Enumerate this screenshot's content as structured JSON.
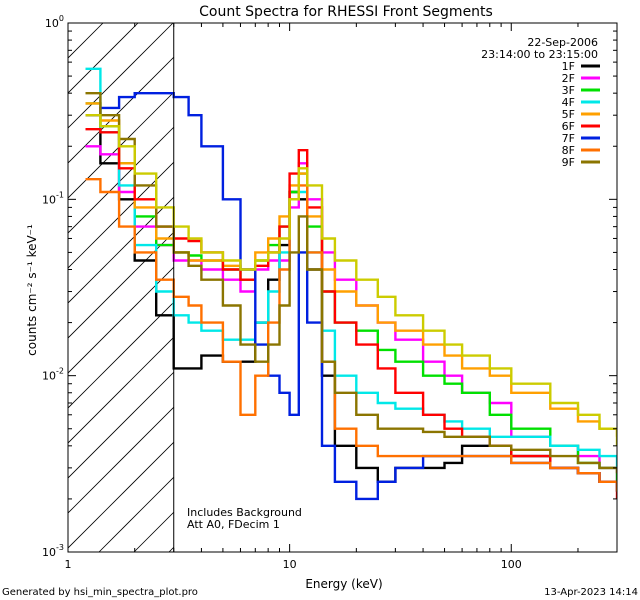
{
  "chart_data": {
    "type": "line",
    "title": "Count Spectra for RHESSI Front Segments",
    "xlabel": "Energy (keV)",
    "ylabel": "counts cm⁻² s⁻¹ keV⁻¹",
    "x_scale": "log",
    "y_scale": "log",
    "xlim": [
      1,
      300
    ],
    "ylim": [
      0.001,
      1
    ],
    "x_ticks": [
      {
        "value": 1,
        "label": "1"
      },
      {
        "value": 10,
        "label": "10"
      },
      {
        "value": 100,
        "label": "100"
      }
    ],
    "y_ticks": [
      {
        "value": 0.001,
        "base": "10",
        "exp": "-3"
      },
      {
        "value": 0.01,
        "base": "10",
        "exp": "-2"
      },
      {
        "value": 0.1,
        "base": "10",
        "exp": "-1"
      },
      {
        "value": 1,
        "base": "10",
        "exp": "0"
      }
    ],
    "hatched_region_xmax": 3,
    "annotation_top_right": [
      "22-Sep-2006",
      "23:14:00 to 23:15:00"
    ],
    "annotation_bottom": [
      "Includes Background",
      "Att A0, FDecim 1"
    ],
    "footer_left": "Generated by hsi_min_spectra_plot.pro",
    "footer_right": "13-Apr-2023 14:14",
    "legend_position": "top-right",
    "series": [
      {
        "name": "1F",
        "color": "#000000",
        "x": [
          1.2,
          1.4,
          1.7,
          2,
          2.5,
          3,
          3.5,
          4,
          5,
          6,
          7,
          8,
          9,
          10,
          11,
          12,
          14,
          16,
          20,
          25,
          30,
          40,
          50,
          60,
          80,
          100,
          150,
          200,
          250,
          300
        ],
        "y": [
          0.3,
          0.16,
          0.1,
          0.045,
          0.022,
          0.011,
          0.011,
          0.013,
          0.012,
          0.012,
          0.02,
          0.035,
          0.055,
          0.11,
          0.1,
          0.04,
          0.01,
          0.004,
          0.003,
          0.0025,
          0.003,
          0.003,
          0.0032,
          0.004,
          0.004,
          0.0035,
          0.003,
          0.0028,
          0.0025,
          0.0022
        ]
      },
      {
        "name": "2F",
        "color": "#ff00ff",
        "x": [
          1.2,
          1.4,
          1.7,
          2,
          2.5,
          3,
          3.5,
          4,
          5,
          6,
          7,
          8,
          9,
          10,
          11,
          12,
          14,
          16,
          20,
          25,
          30,
          40,
          50,
          60,
          80,
          100,
          150,
          200,
          250,
          300
        ],
        "y": [
          0.2,
          0.18,
          0.11,
          0.07,
          0.055,
          0.045,
          0.045,
          0.04,
          0.035,
          0.03,
          0.04,
          0.045,
          0.045,
          0.09,
          0.16,
          0.1,
          0.05,
          0.035,
          0.025,
          0.02,
          0.016,
          0.012,
          0.01,
          0.008,
          0.007,
          0.0045,
          0.004,
          0.0035,
          0.003,
          0.0025
        ]
      },
      {
        "name": "3F",
        "color": "#00e000",
        "x": [
          1.2,
          1.4,
          1.7,
          2,
          2.5,
          3,
          3.5,
          4,
          5,
          6,
          7,
          8,
          9,
          10,
          11,
          12,
          14,
          16,
          20,
          25,
          30,
          40,
          50,
          60,
          80,
          100,
          150,
          200,
          250,
          300
        ],
        "y": [
          0.35,
          0.26,
          0.16,
          0.08,
          0.055,
          0.05,
          0.048,
          0.045,
          0.04,
          0.035,
          0.045,
          0.055,
          0.07,
          0.11,
          0.14,
          0.07,
          0.03,
          0.02,
          0.018,
          0.014,
          0.012,
          0.01,
          0.009,
          0.008,
          0.006,
          0.005,
          0.004,
          0.0032,
          0.003,
          0.0025
        ]
      },
      {
        "name": "4F",
        "color": "#00e8e8",
        "x": [
          1.2,
          1.4,
          1.7,
          2,
          2.5,
          3,
          3.5,
          4,
          5,
          6,
          7,
          8,
          9,
          10,
          11,
          12,
          14,
          16,
          20,
          25,
          30,
          40,
          50,
          60,
          80,
          100,
          150,
          200,
          250,
          300
        ],
        "y": [
          0.55,
          0.24,
          0.12,
          0.055,
          0.03,
          0.022,
          0.02,
          0.018,
          0.016,
          0.016,
          0.02,
          0.03,
          0.05,
          0.1,
          0.11,
          0.05,
          0.018,
          0.01,
          0.008,
          0.007,
          0.0065,
          0.006,
          0.0055,
          0.005,
          0.0045,
          0.0045,
          0.004,
          0.0038,
          0.0035,
          0.003
        ]
      },
      {
        "name": "5F",
        "color": "#ffa000",
        "x": [
          1.2,
          1.4,
          1.7,
          2,
          2.5,
          3,
          3.5,
          4,
          5,
          6,
          7,
          8,
          9,
          10,
          11,
          12,
          14,
          16,
          20,
          25,
          30,
          40,
          50,
          60,
          80,
          100,
          150,
          200,
          250,
          300
        ],
        "y": [
          0.35,
          0.28,
          0.16,
          0.09,
          0.06,
          0.05,
          0.045,
          0.045,
          0.042,
          0.04,
          0.05,
          0.06,
          0.08,
          0.12,
          0.14,
          0.08,
          0.04,
          0.03,
          0.025,
          0.02,
          0.018,
          0.015,
          0.013,
          0.011,
          0.01,
          0.008,
          0.0065,
          0.0055,
          0.005,
          0.0045
        ]
      },
      {
        "name": "6F",
        "color": "#ff0000",
        "x": [
          1.2,
          1.4,
          1.7,
          2,
          2.5,
          3,
          3.5,
          4,
          5,
          6,
          7,
          8,
          9,
          10,
          11,
          12,
          14,
          16,
          20,
          25,
          30,
          40,
          50,
          60,
          80,
          100,
          150,
          200,
          250,
          300
        ],
        "y": [
          0.25,
          0.24,
          0.15,
          0.1,
          0.07,
          0.06,
          0.058,
          0.05,
          0.04,
          0.035,
          0.042,
          0.05,
          0.07,
          0.14,
          0.19,
          0.09,
          0.03,
          0.02,
          0.015,
          0.011,
          0.008,
          0.006,
          0.005,
          0.0045,
          0.004,
          0.0035,
          0.003,
          0.0028,
          0.0025,
          0.002
        ]
      },
      {
        "name": "7F",
        "color": "#0020e0",
        "x": [
          1.2,
          1.4,
          1.7,
          2,
          2.5,
          3,
          3.5,
          4,
          5,
          6,
          7,
          8,
          9,
          10,
          11,
          12,
          14,
          16,
          20,
          25,
          30,
          40,
          50,
          60,
          80,
          100,
          150,
          200,
          250,
          300
        ],
        "y": [
          0.3,
          0.33,
          0.38,
          0.4,
          0.4,
          0.38,
          0.3,
          0.2,
          0.1,
          0.04,
          0.015,
          0.01,
          0.008,
          0.006,
          0.05,
          0.02,
          0.004,
          0.0025,
          0.002,
          0.0025,
          0.003,
          0.0035,
          0.0035,
          0.0035,
          0.0035,
          0.0032,
          0.003,
          0.0028,
          0.0025,
          0.0022
        ]
      },
      {
        "name": "8F",
        "color": "#ff7000",
        "x": [
          1.2,
          1.4,
          1.7,
          2,
          2.5,
          3,
          3.5,
          4,
          5,
          6,
          7,
          8,
          9,
          10,
          11,
          12,
          14,
          16,
          20,
          25,
          30,
          40,
          50,
          60,
          80,
          100,
          150,
          200,
          250,
          300
        ],
        "y": [
          0.13,
          0.11,
          0.07,
          0.05,
          0.035,
          0.028,
          0.025,
          0.02,
          0.012,
          0.006,
          0.01,
          0.02,
          0.04,
          0.1,
          0.12,
          0.05,
          0.012,
          0.005,
          0.004,
          0.0035,
          0.0035,
          0.0035,
          0.0035,
          0.0035,
          0.0035,
          0.0032,
          0.003,
          0.0028,
          0.0025,
          0.0022
        ]
      },
      {
        "name": "9F",
        "color": "#8b7500",
        "x": [
          1.2,
          1.4,
          1.7,
          2,
          2.5,
          3,
          3.5,
          4,
          5,
          6,
          7,
          8,
          9,
          10,
          11,
          12,
          14,
          16,
          20,
          25,
          30,
          40,
          50,
          60,
          80,
          100,
          150,
          200,
          250,
          300
        ],
        "y": [
          0.4,
          0.3,
          0.22,
          0.12,
          0.07,
          0.05,
          0.042,
          0.035,
          0.025,
          0.015,
          0.012,
          0.015,
          0.025,
          0.05,
          0.08,
          0.04,
          0.012,
          0.008,
          0.006,
          0.005,
          0.005,
          0.0048,
          0.0045,
          0.0045,
          0.004,
          0.0038,
          0.0035,
          0.0032,
          0.003,
          0.0028
        ]
      },
      {
        "name": "",
        "color": "#cccc00",
        "x": [
          1.2,
          1.4,
          1.7,
          2,
          2.5,
          3,
          3.5,
          4,
          5,
          6,
          7,
          8,
          9,
          10,
          11,
          12,
          14,
          16,
          20,
          25,
          30,
          40,
          50,
          60,
          80,
          100,
          150,
          200,
          250,
          300
        ],
        "y": [
          0.3,
          0.26,
          0.2,
          0.14,
          0.09,
          0.07,
          0.06,
          0.05,
          0.045,
          0.04,
          0.045,
          0.05,
          0.06,
          0.1,
          0.15,
          0.12,
          0.06,
          0.045,
          0.035,
          0.028,
          0.022,
          0.018,
          0.015,
          0.013,
          0.011,
          0.009,
          0.007,
          0.006,
          0.005,
          0.004
        ]
      }
    ]
  }
}
